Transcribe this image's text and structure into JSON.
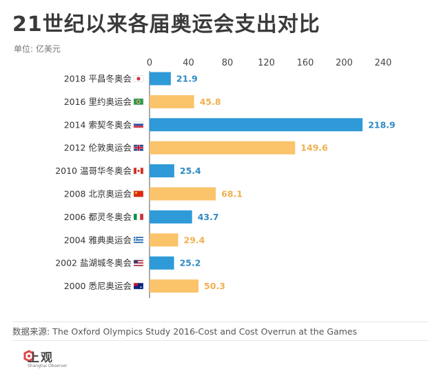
{
  "header": {
    "title": "21世纪以来各届奥运会支出对比",
    "unit": "单位: 亿美元"
  },
  "footer": {
    "source": "数据来源: The Oxford Olympics Study 2016-Cost and Cost Overrun at the Games",
    "logo_text": "上观",
    "logo_sub": "Shanghai Observer"
  },
  "colors": {
    "winter": "#2e9ad8",
    "summer": "#fbc36a",
    "winter_label": "#2e8ac4",
    "summer_label": "#f0b04e"
  },
  "chart_data": {
    "type": "bar",
    "orientation": "horizontal",
    "title": "21世纪以来各届奥运会支出对比",
    "unit": "单位: 亿美元",
    "xlim": [
      0,
      240
    ],
    "xticks": [
      0,
      40,
      80,
      120,
      160,
      200,
      240
    ],
    "grid": false,
    "categories": [
      "2018 平昌冬奥会",
      "2016 里约奥运会",
      "2014 索契冬奥会",
      "2012 伦敦奥运会",
      "2010 温哥华冬奥会",
      "2008 北京奥运会",
      "2006 都灵冬奥会",
      "2004 雅典奥运会",
      "2002 盐湖城冬奥会",
      "2000 悉尼奥运会"
    ],
    "values": [
      21.9,
      45.8,
      218.9,
      149.6,
      25.4,
      68.1,
      43.7,
      29.4,
      25.2,
      50.3
    ],
    "value_labels": [
      "21.9",
      "45.8",
      "218.9",
      "149.6",
      "25.4",
      "68.1",
      "43.7",
      "29.4",
      "25.2",
      "50.3"
    ],
    "games_type": [
      "winter",
      "summer",
      "winter",
      "summer",
      "winter",
      "summer",
      "winter",
      "summer",
      "winter",
      "summer"
    ],
    "flags": [
      "kr",
      "br",
      "ru",
      "gb",
      "ca",
      "cn",
      "it",
      "gr",
      "us",
      "au"
    ]
  }
}
